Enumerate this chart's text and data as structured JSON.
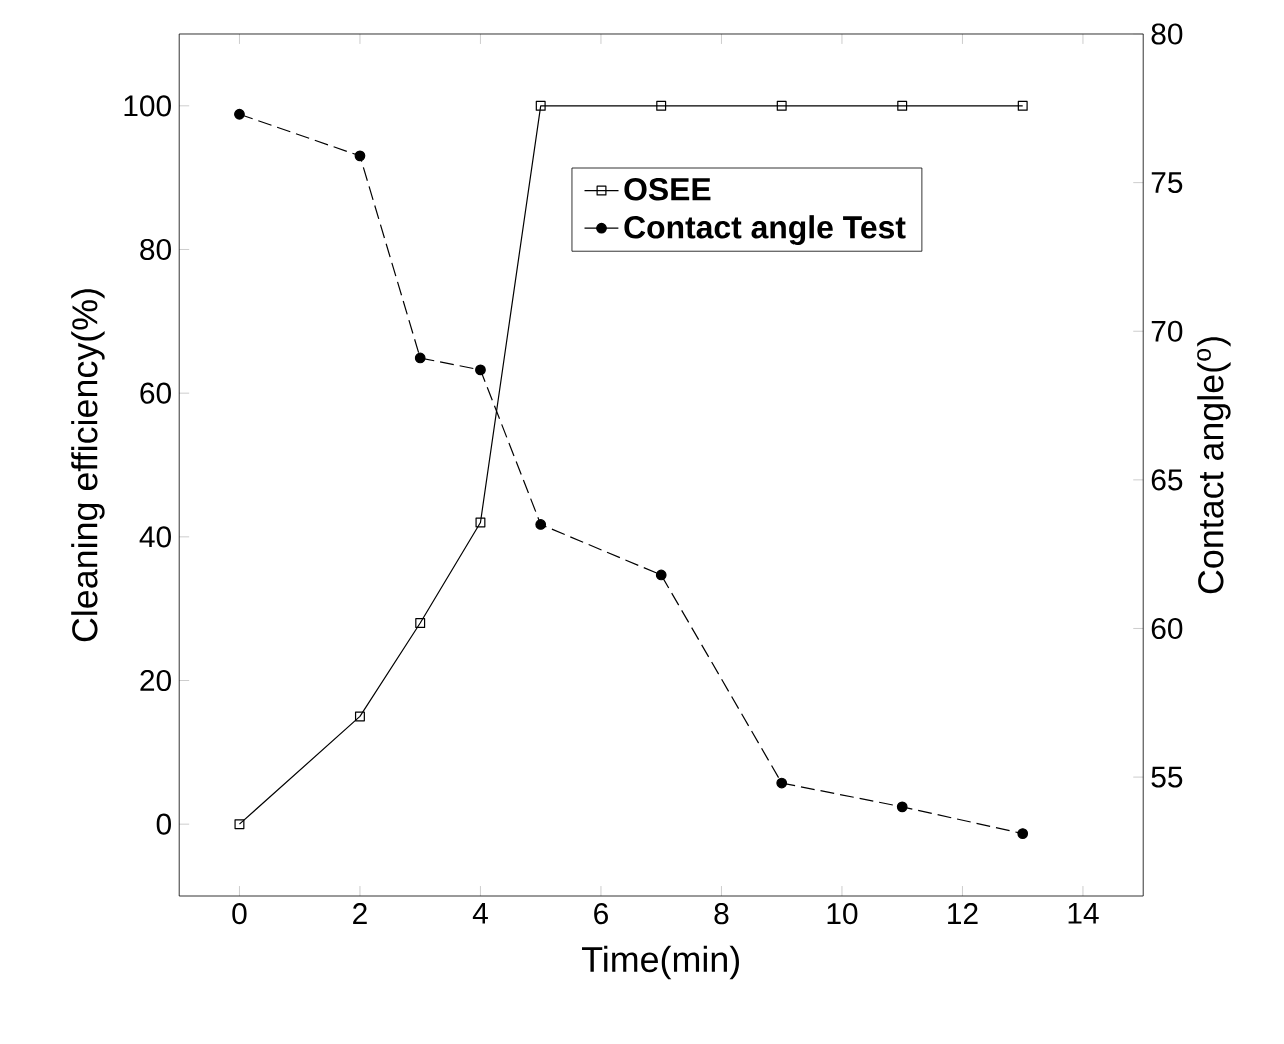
{
  "chart_data": {
    "type": "line",
    "xlabel": "Time(min)",
    "ylabel": "Cleaning efficiency(%)",
    "y2label": "Contact angle($^{o}$)",
    "xlim": [
      -1,
      15
    ],
    "xticks": [
      0,
      2,
      4,
      6,
      8,
      10,
      12,
      14
    ],
    "ylim": [
      -10,
      110
    ],
    "yticks": [
      0,
      20,
      40,
      60,
      80,
      100
    ],
    "y2lim": [
      51,
      80
    ],
    "y2ticks": [
      55,
      60,
      65,
      70,
      75,
      80
    ],
    "legend": "top right",
    "grid": false,
    "series": [
      {
        "name": "OSEE",
        "color": "#000000",
        "marker": "square",
        "line_style": "solid",
        "x": [
          0,
          2,
          3,
          4,
          5,
          7,
          9,
          11,
          13
        ],
        "values": [
          0,
          15,
          28,
          42,
          100,
          100,
          100,
          100,
          100
        ]
      },
      {
        "name": "Contact angle Test",
        "color": "#000000",
        "marker": "circle",
        "line_style": "dashed",
        "axis": "y2",
        "x": [
          0,
          2,
          3,
          4,
          5,
          7,
          9,
          11,
          13
        ],
        "values": [
          77.3,
          75.9,
          69.1,
          68.7,
          63.5,
          61.8,
          54.8,
          54.0,
          53.1
        ]
      }
    ]
  }
}
